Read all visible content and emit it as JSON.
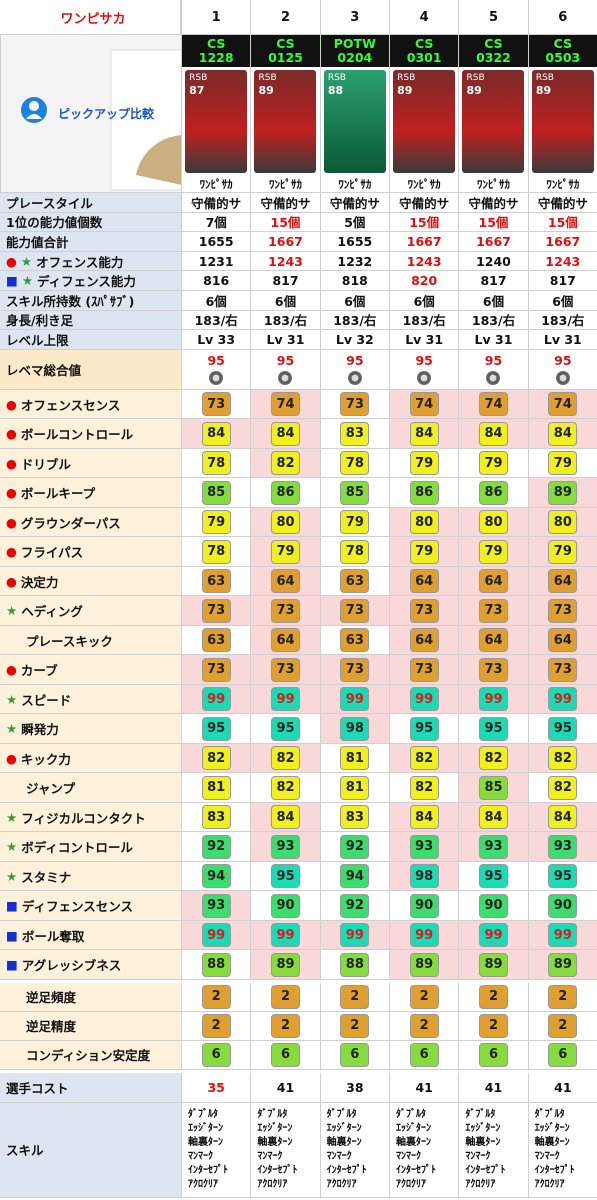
{
  "header": {
    "title": "ワンピサカ",
    "columns": [
      1,
      2,
      3,
      4,
      5,
      6
    ]
  },
  "pickup": "ピックアップ比較",
  "cards": [
    {
      "type": "CS",
      "code": "1228",
      "position": "RSB",
      "rating": 87,
      "name": "ﾜﾝﾋﾟｻｶ"
    },
    {
      "type": "CS",
      "code": "0125",
      "position": "RSB",
      "rating": 89,
      "name": "ﾜﾝﾋﾟｻｶ"
    },
    {
      "type": "POTW",
      "code": "0204",
      "position": "RSB",
      "rating": 88,
      "name": "ﾜﾝﾋﾟｻｶ"
    },
    {
      "type": "CS",
      "code": "0301",
      "position": "RSB",
      "rating": 89,
      "name": "ﾜﾝﾋﾟｻｶ"
    },
    {
      "type": "CS",
      "code": "0322",
      "position": "RSB",
      "rating": 89,
      "name": "ﾜﾝﾋﾟｻｶ"
    },
    {
      "type": "CS",
      "code": "0503",
      "position": "RSB",
      "rating": 89,
      "name": "ﾜﾝﾋﾟｻｶ"
    }
  ],
  "info_rows": [
    {
      "label": "プレースタイル",
      "values": [
        "守備的サ",
        "守備的サ",
        "守備的サ",
        "守備的サ",
        "守備的サ",
        "守備的サ"
      ],
      "highlight": [
        false,
        false,
        false,
        false,
        false,
        false
      ]
    },
    {
      "label": "1位の能力値個数",
      "values": [
        "7個",
        "15個",
        "5個",
        "15個",
        "15個",
        "15個"
      ],
      "highlight": [
        false,
        true,
        false,
        true,
        true,
        true
      ]
    },
    {
      "label": "能力値合計",
      "values": [
        1655,
        1667,
        1655,
        1667,
        1667,
        1667
      ],
      "highlight": [
        false,
        true,
        false,
        true,
        true,
        true
      ]
    },
    {
      "label": "オフェンス能力",
      "marks": [
        "●",
        "★"
      ],
      "values": [
        1231,
        1243,
        1232,
        1243,
        1240,
        1243
      ],
      "highlight": [
        false,
        true,
        false,
        true,
        false,
        true
      ]
    },
    {
      "label": "ディフェンス能力",
      "marks": [
        "■",
        "★"
      ],
      "values": [
        816,
        817,
        818,
        820,
        817,
        817
      ],
      "highlight": [
        false,
        false,
        false,
        true,
        false,
        false
      ]
    },
    {
      "label": "スキル所持数 (ｽﾊﾟｻﾌﾞ)",
      "values": [
        "6個",
        "6個",
        "6個",
        "6個",
        "6個",
        "6個"
      ],
      "highlight": [
        false,
        false,
        false,
        false,
        false,
        false
      ]
    },
    {
      "label": "身長/利き足",
      "values": [
        "183/右",
        "183/右",
        "183/右",
        "183/右",
        "183/右",
        "183/右"
      ],
      "highlight": [
        false,
        false,
        false,
        false,
        false,
        false
      ]
    },
    {
      "label": "レベル上限",
      "values": [
        "Lv 33",
        "Lv 31",
        "Lv 32",
        "Lv 31",
        "Lv 31",
        "Lv 31"
      ],
      "highlight": [
        false,
        false,
        false,
        false,
        false,
        false
      ]
    }
  ],
  "level_max": {
    "label": "レベマ総合値",
    "values": [
      95,
      95,
      95,
      95,
      95,
      95
    ]
  },
  "stat_rows": [
    {
      "mark": "●",
      "label": "オフェンスセンス",
      "values": [
        73,
        74,
        73,
        74,
        74,
        74
      ]
    },
    {
      "mark": "●",
      "label": "ボールコントロール",
      "values": [
        84,
        84,
        83,
        84,
        84,
        84
      ]
    },
    {
      "mark": "●",
      "label": "ドリブル",
      "values": [
        78,
        82,
        78,
        79,
        79,
        79
      ]
    },
    {
      "mark": "●",
      "label": "ボールキープ",
      "values": [
        85,
        86,
        85,
        86,
        86,
        89
      ]
    },
    {
      "mark": "●",
      "label": "グラウンダーパス",
      "values": [
        79,
        80,
        79,
        80,
        80,
        80
      ]
    },
    {
      "mark": "●",
      "label": "フライパス",
      "values": [
        78,
        79,
        78,
        79,
        79,
        79
      ]
    },
    {
      "mark": "●",
      "label": "決定力",
      "values": [
        63,
        64,
        63,
        64,
        64,
        64
      ]
    },
    {
      "mark": "★",
      "label": "ヘディング",
      "values": [
        73,
        73,
        73,
        73,
        73,
        73
      ]
    },
    {
      "label": "プレースキック",
      "values": [
        63,
        64,
        63,
        64,
        64,
        64
      ]
    },
    {
      "mark": "●",
      "label": "カーブ",
      "values": [
        73,
        73,
        73,
        73,
        73,
        73
      ]
    },
    {
      "mark": "★",
      "label": "スピード",
      "values": [
        99,
        99,
        99,
        99,
        99,
        99
      ]
    },
    {
      "mark": "★",
      "label": "瞬発力",
      "values": [
        95,
        95,
        98,
        95,
        95,
        95
      ]
    },
    {
      "mark": "●",
      "label": "キック力",
      "values": [
        82,
        82,
        81,
        82,
        82,
        82
      ]
    },
    {
      "label": "ジャンプ",
      "values": [
        81,
        82,
        81,
        82,
        85,
        82
      ]
    },
    {
      "mark": "★",
      "label": "フィジカルコンタクト",
      "values": [
        83,
        84,
        83,
        84,
        84,
        84
      ]
    },
    {
      "mark": "★",
      "label": "ボディコントロール",
      "values": [
        92,
        93,
        92,
        93,
        93,
        93
      ]
    },
    {
      "mark": "★",
      "label": "スタミナ",
      "values": [
        94,
        95,
        94,
        98,
        95,
        95
      ]
    },
    {
      "mark": "■",
      "label": "ディフェンスセンス",
      "values": [
        93,
        90,
        92,
        90,
        90,
        90
      ]
    },
    {
      "mark": "■",
      "label": "ボール奪取",
      "values": [
        99,
        99,
        99,
        99,
        99,
        99
      ]
    },
    {
      "mark": "■",
      "label": "アグレッシブネス",
      "values": [
        88,
        89,
        88,
        89,
        89,
        89
      ]
    }
  ],
  "foot_rows": [
    {
      "label": "逆足頻度",
      "values": [
        2,
        2,
        2,
        2,
        2,
        2
      ]
    },
    {
      "label": "逆足精度",
      "values": [
        2,
        2,
        2,
        2,
        2,
        2
      ]
    },
    {
      "label": "コンディション安定度",
      "values": [
        6,
        6,
        6,
        6,
        6,
        6
      ]
    }
  ],
  "cost": {
    "label": "選手コスト",
    "values": [
      35,
      41,
      38,
      41,
      41,
      41
    ],
    "highlight": [
      true,
      false,
      false,
      false,
      false,
      false
    ]
  },
  "skills": {
    "label": "スキル",
    "values": [
      [
        "ﾀﾞﾌﾞﾙﾀ",
        "ｴｯｼﾞﾀｰﾝ",
        "軸裏ﾀｰﾝ",
        "ﾏﾝﾏｰｸ",
        "ｲﾝﾀｰｾﾌﾟﾄ",
        "ｱｸﾛｸﾘｱ"
      ],
      [
        "ﾀﾞﾌﾞﾙﾀ",
        "ｴｯｼﾞﾀｰﾝ",
        "軸裏ﾀｰﾝ",
        "ﾏﾝﾏｰｸ",
        "ｲﾝﾀｰｾﾌﾟﾄ",
        "ｱｸﾛｸﾘｱ"
      ],
      [
        "ﾀﾞﾌﾞﾙﾀ",
        "ｴｯｼﾞﾀｰﾝ",
        "軸裏ﾀｰﾝ",
        "ﾏﾝﾏｰｸ",
        "ｲﾝﾀｰｾﾌﾟﾄ",
        "ｱｸﾛｸﾘｱ"
      ],
      [
        "ﾀﾞﾌﾞﾙﾀ",
        "ｴｯｼﾞﾀｰﾝ",
        "軸裏ﾀｰﾝ",
        "ﾏﾝﾏｰｸ",
        "ｲﾝﾀｰｾﾌﾟﾄ",
        "ｱｸﾛｸﾘｱ"
      ],
      [
        "ﾀﾞﾌﾞﾙﾀ",
        "ｴｯｼﾞﾀｰﾝ",
        "軸裏ﾀｰﾝ",
        "ﾏﾝﾏｰｸ",
        "ｲﾝﾀｰｾﾌﾟﾄ",
        "ｱｸﾛｸﾘｱ"
      ],
      [
        "ﾀﾞﾌﾞﾙﾀ",
        "ｴｯｼﾞﾀｰﾝ",
        "軸裏ﾀｰﾝ",
        "ﾏﾝﾏｰｸ",
        "ｲﾝﾀｰｾﾌﾟﾄ",
        "ｱｸﾛｸﾘｱ"
      ]
    ]
  }
}
